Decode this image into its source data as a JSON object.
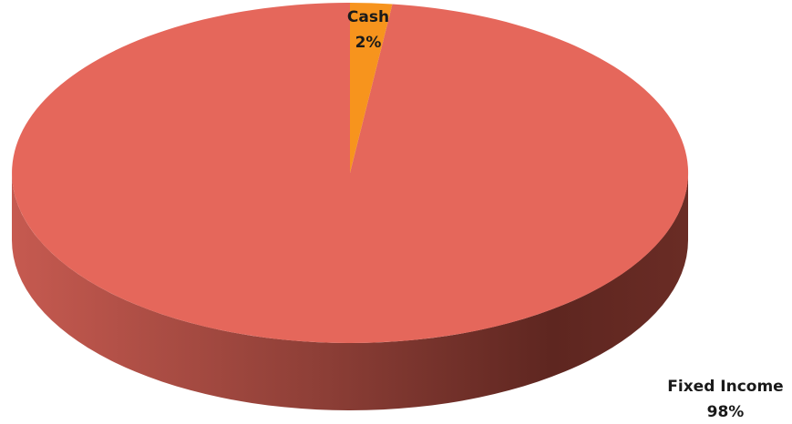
{
  "chart_data": {
    "type": "pie",
    "style": "3d",
    "slices": [
      {
        "label": "Cash",
        "value": 2,
        "value_label": "2%",
        "color": "#F7941D"
      },
      {
        "label": "Fixed Income",
        "value": 98,
        "value_label": "98%",
        "color": "#E5675B"
      }
    ],
    "legend": "none"
  }
}
